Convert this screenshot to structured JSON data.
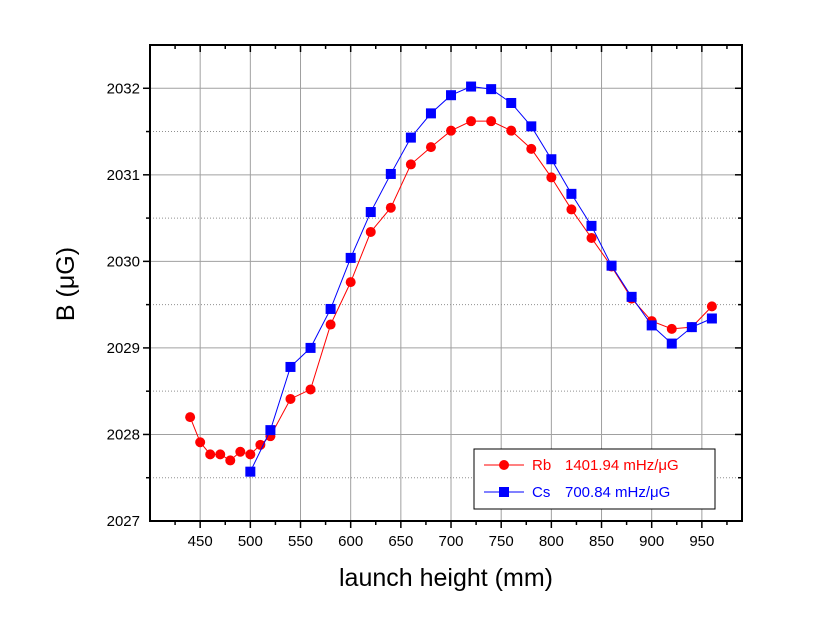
{
  "chart_data": {
    "type": "line",
    "title": "",
    "xlabel": "launch height (mm)",
    "ylabel": "B (μG)",
    "xlim": [
      400,
      990
    ],
    "ylim": [
      2027,
      2032.5
    ],
    "x_ticks": [
      450,
      500,
      550,
      600,
      650,
      700,
      750,
      800,
      850,
      900,
      950
    ],
    "y_ticks": [
      2027,
      2028,
      2029,
      2030,
      2031,
      2032
    ],
    "x_tick_labels": [
      "450",
      "500",
      "550",
      "600",
      "650",
      "700",
      "750",
      "800",
      "850",
      "900",
      "950"
    ],
    "y_tick_labels": [
      "2027",
      "2028",
      "2029",
      "2030",
      "2031",
      "2032"
    ],
    "grid": true,
    "legend_position": "bottom-right",
    "series": [
      {
        "name": "Rb",
        "legend_value": "1401.94 mHz/μG",
        "color": "#ff0000",
        "marker": "circle",
        "points": [
          [
            440,
            2028.2
          ],
          [
            450,
            2027.91
          ],
          [
            460,
            2027.77
          ],
          [
            470,
            2027.77
          ],
          [
            480,
            2027.7
          ],
          [
            490,
            2027.8
          ],
          [
            500,
            2027.77
          ],
          [
            510,
            2027.88
          ],
          [
            520,
            2027.98
          ],
          [
            540,
            2028.41
          ],
          [
            560,
            2028.52
          ],
          [
            580,
            2029.27
          ],
          [
            600,
            2029.76
          ],
          [
            620,
            2030.34
          ],
          [
            640,
            2030.62
          ],
          [
            660,
            2031.12
          ],
          [
            680,
            2031.32
          ],
          [
            700,
            2031.51
          ],
          [
            720,
            2031.62
          ],
          [
            740,
            2031.62
          ],
          [
            760,
            2031.51
          ],
          [
            780,
            2031.3
          ],
          [
            800,
            2030.97
          ],
          [
            820,
            2030.6
          ],
          [
            840,
            2030.27
          ],
          [
            860,
            2029.94
          ],
          [
            880,
            2029.57
          ],
          [
            900,
            2029.31
          ],
          [
            920,
            2029.22
          ],
          [
            940,
            2029.24
          ],
          [
            960,
            2029.48
          ]
        ]
      },
      {
        "name": "Cs",
        "legend_value": "700.84 mHz/μG",
        "color": "#0000ff",
        "marker": "square",
        "points": [
          [
            500,
            2027.57
          ],
          [
            520,
            2028.05
          ],
          [
            540,
            2028.78
          ],
          [
            560,
            2029.0
          ],
          [
            580,
            2029.45
          ],
          [
            600,
            2030.04
          ],
          [
            620,
            2030.57
          ],
          [
            640,
            2031.01
          ],
          [
            660,
            2031.43
          ],
          [
            680,
            2031.71
          ],
          [
            700,
            2031.92
          ],
          [
            720,
            2032.02
          ],
          [
            740,
            2031.99
          ],
          [
            760,
            2031.83
          ],
          [
            780,
            2031.56
          ],
          [
            800,
            2031.18
          ],
          [
            820,
            2030.78
          ],
          [
            840,
            2030.41
          ],
          [
            860,
            2029.95
          ],
          [
            880,
            2029.59
          ],
          [
            900,
            2029.26
          ],
          [
            920,
            2029.05
          ],
          [
            940,
            2029.24
          ],
          [
            960,
            2029.34
          ]
        ]
      }
    ]
  }
}
